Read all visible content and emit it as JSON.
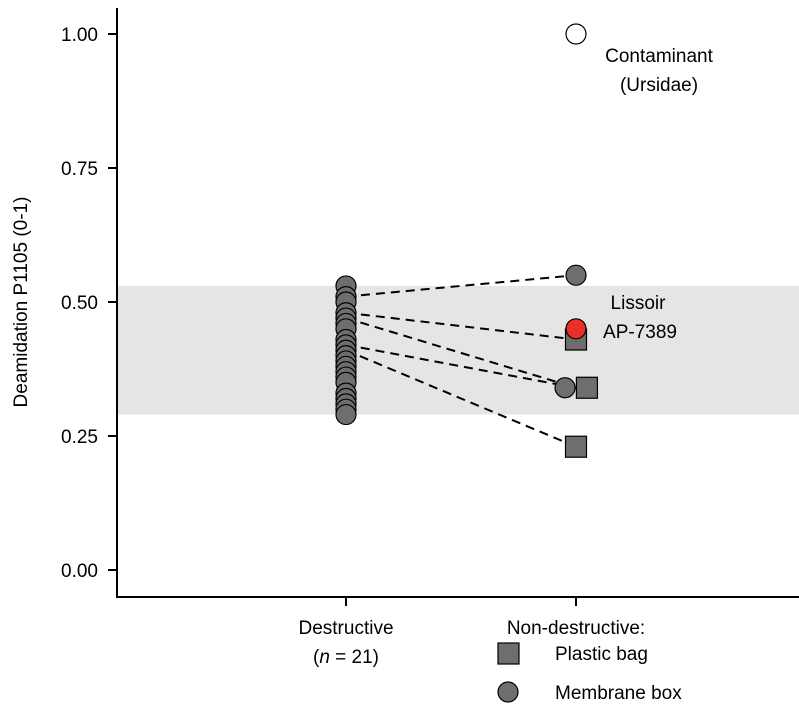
{
  "chart_data": {
    "type": "scatter",
    "title": "",
    "ylabel": "Deamidation P1105 (0-1)",
    "xlabel": "",
    "ylim": [
      0,
      1.0
    ],
    "yticks": [
      "0.00",
      "0.25",
      "0.50",
      "0.75",
      "1.00"
    ],
    "ytick_values": [
      0,
      0.25,
      0.5,
      0.75,
      1.0
    ],
    "grid": false,
    "range_band": {
      "ymin": 0.29,
      "ymax": 0.53,
      "color": "#e5e5e5"
    },
    "categories": [
      {
        "line1": "Destructive",
        "line2_italic": "n",
        "line2_rest": " = 21)",
        "line2_open": "("
      },
      {
        "line1": "Non-destructive:"
      }
    ],
    "destructive_values": [
      0.53,
      0.51,
      0.5,
      0.48,
      0.47,
      0.46,
      0.45,
      0.43,
      0.42,
      0.41,
      0.4,
      0.39,
      0.38,
      0.37,
      0.36,
      0.35,
      0.33,
      0.32,
      0.31,
      0.3,
      0.29
    ],
    "nondestructive": [
      {
        "type": "circle-open",
        "y": 1.0,
        "dx": 0
      },
      {
        "type": "circle",
        "y": 0.55,
        "dx": 0
      },
      {
        "type": "square",
        "y": 0.43,
        "dx": 0
      },
      {
        "type": "circle-red",
        "y": 0.45,
        "dx": 0
      },
      {
        "type": "circle",
        "y": 0.34,
        "dx": -0.05
      },
      {
        "type": "square",
        "y": 0.34,
        "dx": 0.05
      },
      {
        "type": "square",
        "y": 0.23,
        "dx": 0
      }
    ],
    "pairs": [
      {
        "from": 0.51,
        "to": 0.55
      },
      {
        "from": 0.48,
        "to": 0.43
      },
      {
        "from": 0.47,
        "to": 0.34
      },
      {
        "from": 0.42,
        "to": 0.34
      },
      {
        "from": 0.41,
        "to": 0.23
      }
    ],
    "annotations": [
      {
        "lines": [
          "Contaminant",
          "(Ursidae)"
        ]
      },
      {
        "lines": [
          "Lissoir",
          "AP-7389"
        ]
      }
    ],
    "legend": {
      "placement": "bottom",
      "items": [
        {
          "label": "Plastic bag",
          "marker": "square"
        },
        {
          "label": "Membrane box",
          "marker": "circle"
        }
      ]
    },
    "colors": {
      "marker_fill": "#6e6e6e",
      "highlight": "#e8302a",
      "open": "#ffffff",
      "stroke": "#000000"
    }
  }
}
